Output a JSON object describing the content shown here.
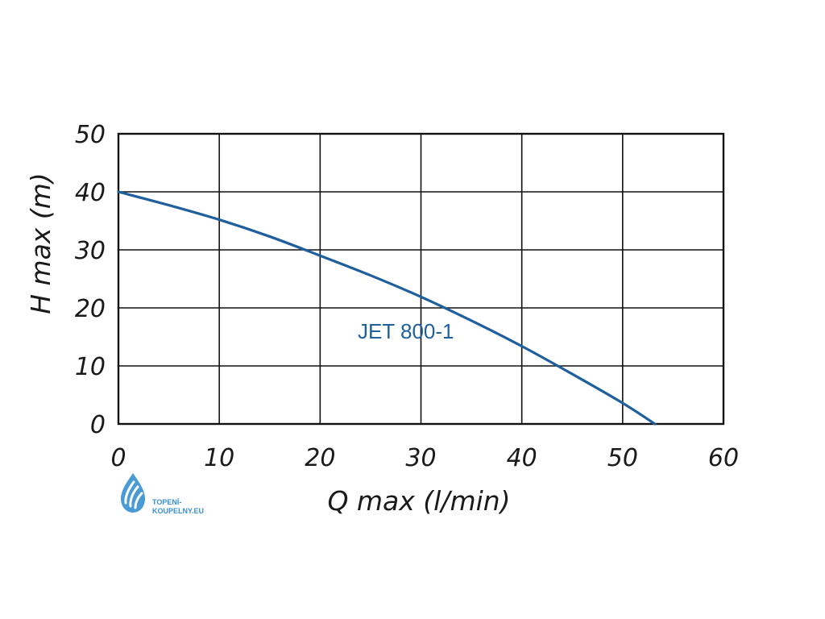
{
  "chart_data": {
    "type": "line",
    "xlabel": "Q max (l/min)",
    "ylabel": "H max (m)",
    "xlim": [
      0,
      60
    ],
    "ylim": [
      0,
      50
    ],
    "x_ticks": [
      "0",
      "10",
      "20",
      "30",
      "40",
      "50",
      "60"
    ],
    "y_ticks": [
      "0",
      "10",
      "20",
      "30",
      "40",
      "50"
    ],
    "grid": true,
    "series": [
      {
        "name": "JET 800-1",
        "color": "#1f5f9e",
        "x": [
          0,
          5,
          10,
          15,
          20,
          25,
          30,
          35,
          40,
          45,
          50,
          53.2
        ],
        "y": [
          40,
          37.7,
          35.2,
          32.3,
          29,
          25.6,
          21.9,
          17.8,
          13.4,
          8.6,
          3.6,
          0
        ]
      }
    ]
  },
  "watermark": {
    "line1": "TOPENÍ-",
    "line2": "KOUPELNY.EU",
    "color": "#3a8fd0",
    "icon": "water-drop-logo"
  }
}
